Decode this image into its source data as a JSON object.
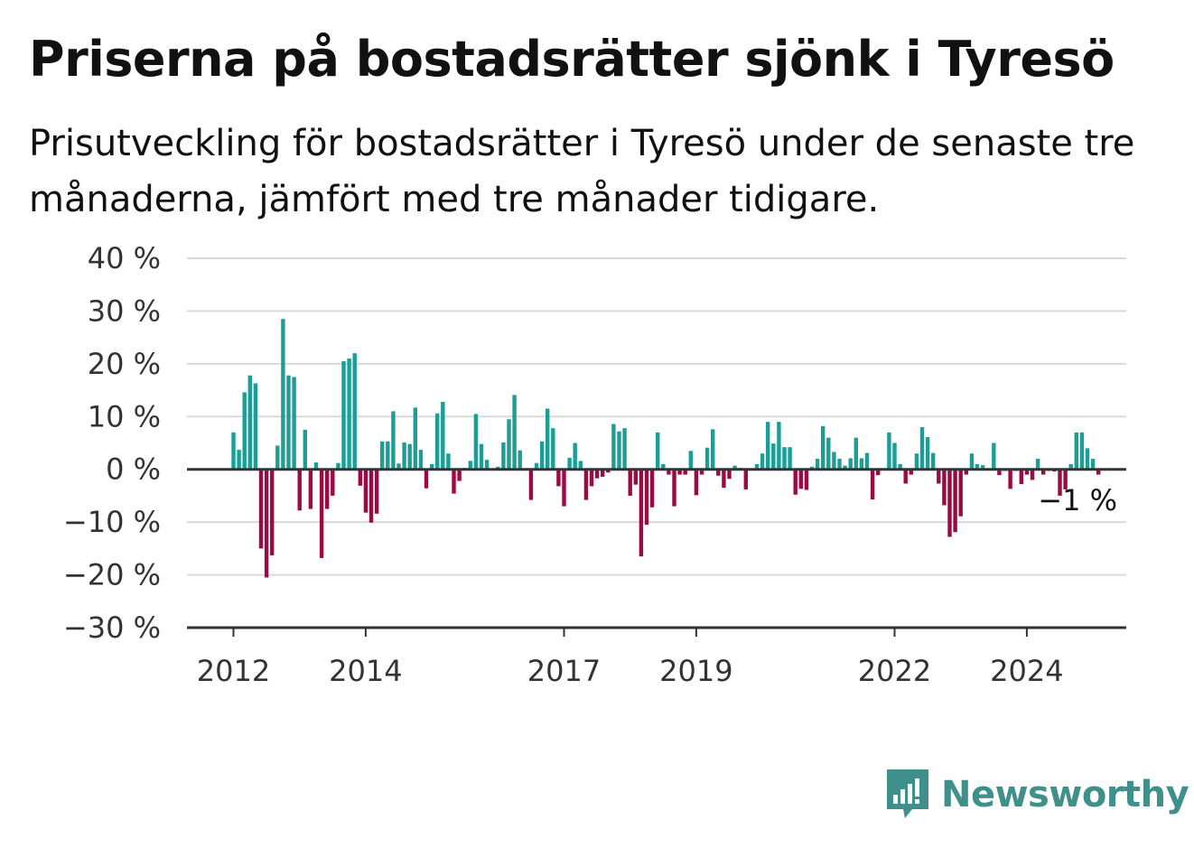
{
  "header": {
    "title": "Priserna på bostadsrätter sjönk i Tyresö",
    "subtitle": "Prisutveckling för bostadsrätter i Tyresö under de senaste tre månaderna, jämfört med tre månader tidigare."
  },
  "branding": {
    "name": "Newsworthy",
    "icon": "newsworthy-bar-chart-logo-icon",
    "color": "#3f8f8a"
  },
  "colors": {
    "positive": "#1a9e96",
    "negative": "#9c0a44",
    "grid": "#d9d9d9",
    "axis": "#333333"
  },
  "chart_data": {
    "type": "bar",
    "x_start": "2012-01",
    "x_interval": "month",
    "ylim": [
      -30,
      40
    ],
    "yticks": [
      40,
      30,
      20,
      10,
      0,
      -10,
      -20,
      -30
    ],
    "ytick_labels": [
      "40 %",
      "30 %",
      "20 %",
      "10 %",
      "0 %",
      "−10 %",
      "−20 %",
      "−30 %"
    ],
    "xticks": [
      "2012-01",
      "2014-01",
      "2017-01",
      "2019-01",
      "2022-01",
      "2024-01"
    ],
    "xtick_labels": [
      "2012",
      "2014",
      "2017",
      "2019",
      "2022",
      "2024"
    ],
    "last_value_label": "−1 %",
    "grid": true,
    "values": [
      7,
      3.7,
      14.6,
      17.8,
      16.3,
      -15,
      -20.5,
      -16.3,
      4.5,
      28.5,
      17.8,
      17.5,
      -7.8,
      7.5,
      -7.5,
      1.3,
      -16.8,
      -7.5,
      -5,
      1.2,
      20.5,
      21,
      22,
      -3.1,
      -8.2,
      -10.1,
      -8.4,
      5.3,
      5.3,
      11,
      1.1,
      5.1,
      4.8,
      11.7,
      3.7,
      -3.6,
      1,
      10.6,
      12.8,
      3,
      -4.6,
      -2.2,
      0.3,
      1.6,
      10.5,
      4.8,
      1.8,
      -0.1,
      0.5,
      5.1,
      9.5,
      14.1,
      3.6,
      0.1,
      -5.8,
      1.2,
      5.3,
      11.5,
      7.8,
      -3.2,
      -7,
      2.2,
      5,
      1.6,
      -5.8,
      -3.2,
      -1.7,
      -1.4,
      -0.6,
      8.6,
      7.2,
      7.8,
      -5,
      -2.9,
      -16.5,
      -10.5,
      -7.2,
      7,
      1,
      -1,
      -7,
      -1,
      -1,
      3.5,
      -4.9,
      -1,
      4.1,
      7.6,
      -1.2,
      -3.5,
      -1.8,
      0.7,
      0.3,
      -3.8,
      0.1,
      1,
      3,
      9,
      4.9,
      9,
      4.2,
      4.2,
      -4.8,
      -3.7,
      -3.9,
      0.5,
      2,
      8.2,
      6,
      3.3,
      2,
      0.7,
      2.1,
      6,
      2.1,
      3.1,
      -5.7,
      -1.1,
      0.1,
      7,
      5,
      1,
      -2.7,
      -1,
      3,
      8,
      6.1,
      3.1,
      -2.7,
      -6.8,
      -12.8,
      -11.9,
      -8.9,
      -1,
      3,
      1,
      0.8,
      0.1,
      5,
      -1.1,
      -0.3,
      -3.7,
      -0.3,
      -2.8,
      -1,
      -2,
      2,
      -1,
      -0.3,
      -0.4,
      -5,
      -3.8,
      1,
      7,
      7,
      4,
      2,
      -1
    ]
  }
}
